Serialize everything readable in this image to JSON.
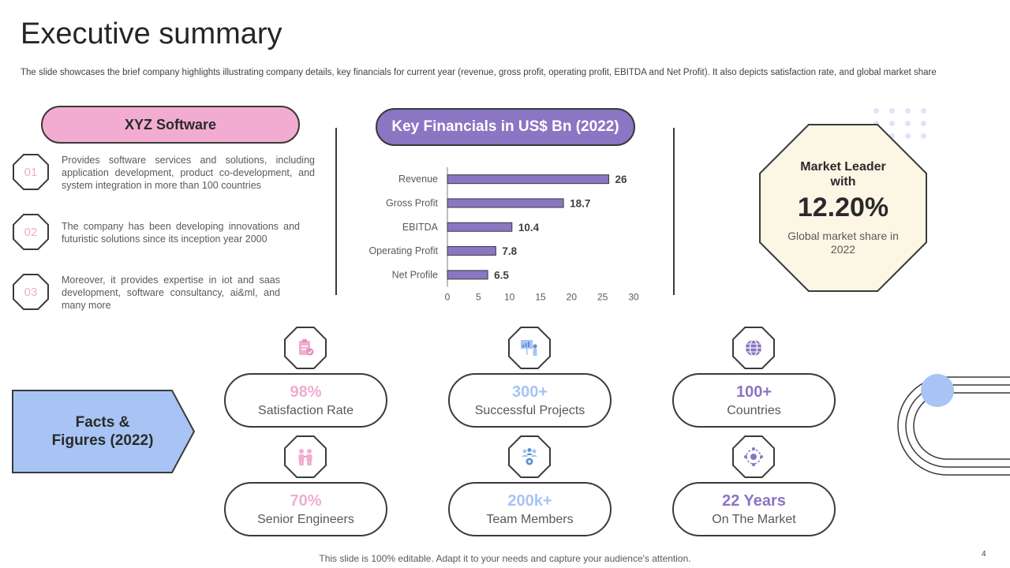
{
  "header": {
    "title": "Executive summary",
    "subtitle": "The slide showcases the brief company highlights illustrating company details, key financials for current year (revenue, gross profit, operating profit, EBITDA and Net Profit). It also depicts satisfaction rate, and global market share"
  },
  "company": {
    "name": "XYZ Software",
    "points": [
      {
        "num": "01",
        "text": "Provides software services and solutions, including application development, product co-development, and system integration in more than 100 countries"
      },
      {
        "num": "02",
        "text": "The company has been developing innovations and futuristic solutions since its inception year 2000"
      },
      {
        "num": "03",
        "text": "Moreover, it provides expertise in iot and saas development, software consultancy, ai&ml, and many more"
      }
    ]
  },
  "financials": {
    "title": "Key Financials in US$ Bn (2022)"
  },
  "chart_data": {
    "type": "bar",
    "orientation": "horizontal",
    "title": "Key Financials in US$ Bn (2022)",
    "categories": [
      "Revenue",
      "Gross Profit",
      "EBITDA",
      "Operating Profit",
      "Net Profile"
    ],
    "values": [
      26,
      18.7,
      10.4,
      7.8,
      6.5
    ],
    "value_labels": [
      "26",
      "18.7",
      "10.4",
      "7.8",
      "6.5"
    ],
    "xlim": [
      0,
      30
    ],
    "xticks": [
      "0",
      "5",
      "10",
      "15",
      "20",
      "25",
      "30"
    ],
    "xtick_values": [
      0,
      5,
      10,
      15,
      20,
      25,
      30
    ],
    "bar_color": "#8a76c2",
    "grid": false,
    "legend": "none"
  },
  "market": {
    "label": "Market Leader with",
    "value": "12.20%",
    "description": "Global market share in 2022"
  },
  "facts": {
    "title_line1": "Facts &",
    "title_line2": "Figures (2022)",
    "stats": [
      {
        "value": "98%",
        "label": "Satisfaction Rate",
        "color": "#f2acd1",
        "icon": "clipboard-check-icon"
      },
      {
        "value": "300+",
        "label": "Successful Projects",
        "color": "#a7c4f4",
        "icon": "presentation-icon"
      },
      {
        "value": "100+",
        "label": "Countries",
        "color": "#8a76c2",
        "icon": "globe-icon"
      },
      {
        "value": "70%",
        "label": "Senior Engineers",
        "color": "#f2acd1",
        "icon": "team-pair-icon"
      },
      {
        "value": "200k+",
        "label": "Team Members",
        "color": "#a7c4f4",
        "icon": "team-gear-icon"
      },
      {
        "value": "22 Years",
        "label": "On The Market",
        "color": "#8a76c2",
        "icon": "network-cycle-icon"
      }
    ]
  },
  "footer": {
    "note": "This slide is 100% editable. Adapt it to your needs and capture your audience's attention.",
    "page": "4"
  },
  "colors": {
    "pink": "#f2acd1",
    "purple": "#8a76c2",
    "blue": "#a7c4f4",
    "cream": "#fcf6e5",
    "outline": "#3a3a3a"
  }
}
